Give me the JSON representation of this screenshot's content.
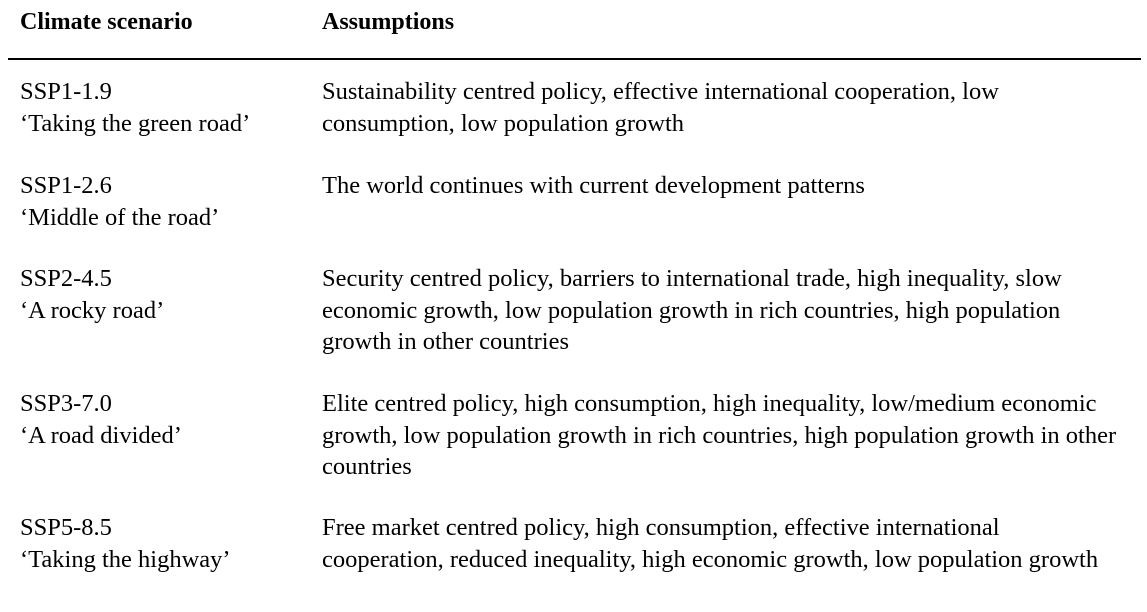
{
  "header": {
    "col1": "Climate scenario",
    "col2": "Assumptions"
  },
  "rows": [
    {
      "code": "SSP1-1.9",
      "name": "‘Taking the green road’",
      "assumptions": "Sustainability centred policy, effective international cooperation, low consumption, low population growth"
    },
    {
      "code": "SSP1-2.6",
      "name": "‘Middle of the road’",
      "assumptions": "The world continues with current development patterns"
    },
    {
      "code": "SSP2-4.5",
      "name": "‘A rocky road’",
      "assumptions": "Security centred policy, barriers to international trade, high inequality, slow economic growth, low population growth in rich countries, high population growth in other countries"
    },
    {
      "code": "SSP3-7.0",
      "name": "‘A road divided’",
      "assumptions": "Elite centred policy, high consumption, high inequality, low/medium economic growth, low population growth in rich countries, high population growth in other countries"
    },
    {
      "code": "SSP5-8.5",
      "name": "‘Taking the highway’",
      "assumptions": "Free market centred policy, high consumption, effective international cooperation, reduced inequality, high economic growth, low population growth"
    }
  ]
}
